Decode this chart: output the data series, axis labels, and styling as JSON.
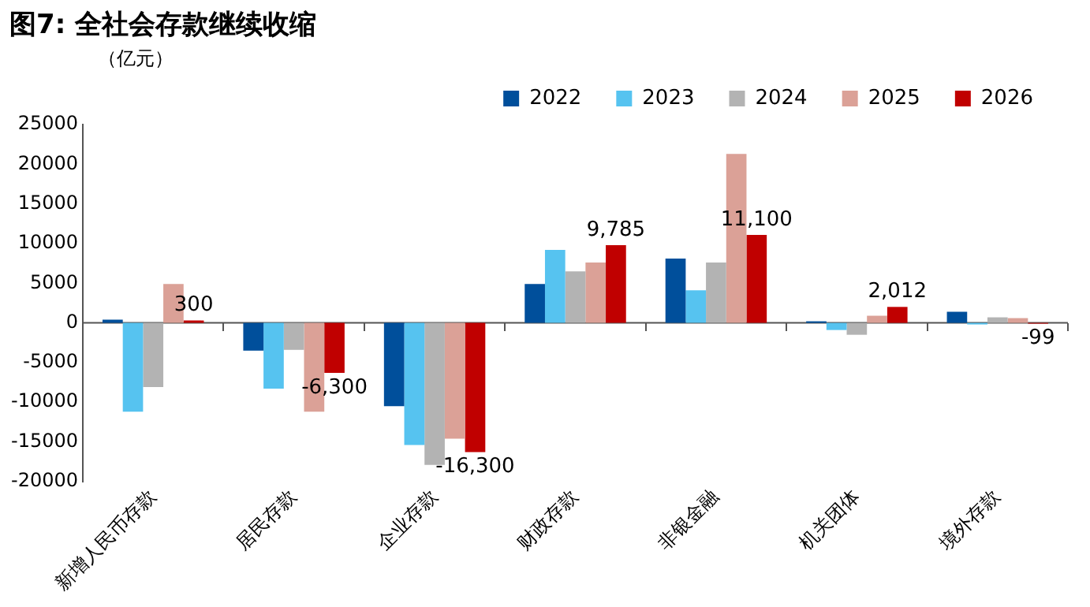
{
  "chart_data": {
    "type": "bar",
    "title": "图7: 全社会存款继续收缩",
    "ylabel": "（亿元）",
    "categories": [
      "新增人民币存款",
      "居民存款",
      "企业存款",
      "财政存款",
      "非银金融",
      "机关团体",
      "境外存款"
    ],
    "series": [
      {
        "name": "2022",
        "color": "#004f9b",
        "values": [
          400,
          -3500,
          -10500,
          4900,
          8100,
          200,
          1400
        ]
      },
      {
        "name": "2023",
        "color": "#56c3f0",
        "values": [
          -11200,
          -8300,
          -15400,
          9200,
          4100,
          -900,
          -200
        ]
      },
      {
        "name": "2024",
        "color": "#b3b3b3",
        "values": [
          -8100,
          -3400,
          -17900,
          6500,
          7600,
          -1500,
          700
        ]
      },
      {
        "name": "2025",
        "color": "#dba197",
        "values": [
          4900,
          -11200,
          -14600,
          7600,
          21300,
          900,
          600
        ]
      },
      {
        "name": "2026",
        "color": "#c00000",
        "values": [
          300,
          -6300,
          -16300,
          9785,
          11100,
          2012,
          -99
        ],
        "value_labels": [
          "300",
          "-6,300",
          "-16,300",
          "9,785",
          "11,100",
          "2,012",
          "-99"
        ]
      }
    ],
    "ylim": [
      -20000,
      25000
    ],
    "yticks": [
      -20000,
      -15000,
      -10000,
      -5000,
      0,
      5000,
      10000,
      15000,
      20000,
      25000
    ],
    "ref_lines": [
      {
        "axis": "y",
        "value": 0,
        "color": "#555555"
      }
    ],
    "grid": false,
    "legend": "top right"
  }
}
